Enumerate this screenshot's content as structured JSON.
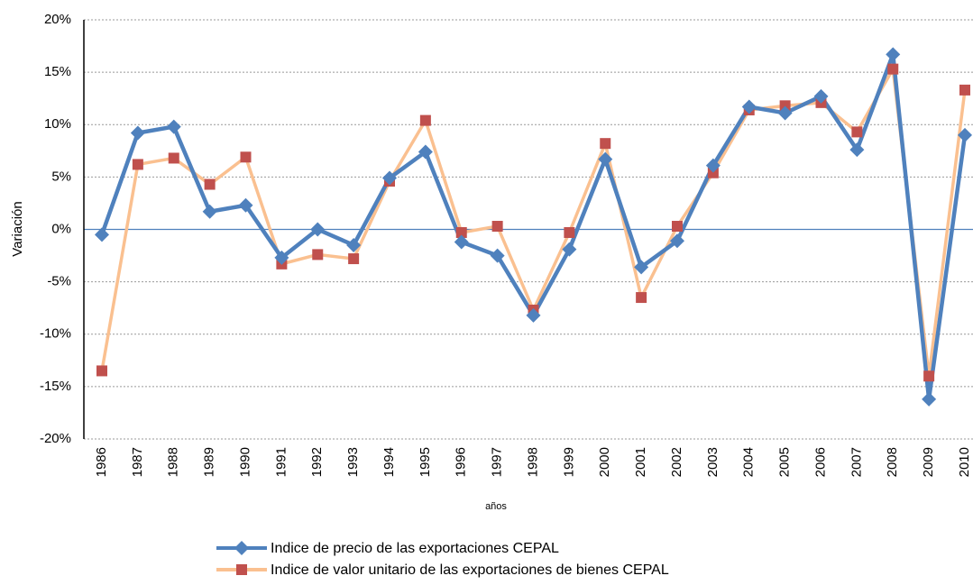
{
  "chart_data": {
    "type": "line",
    "ylabel": "Variación",
    "xlabel": "años",
    "categories": [
      "1986",
      "1987",
      "1988",
      "1989",
      "1990",
      "1991",
      "1992",
      "1993",
      "1994",
      "1995",
      "1996",
      "1997",
      "1998",
      "1999",
      "2000",
      "2001",
      "2002",
      "2003",
      "2004",
      "2005",
      "2006",
      "2007",
      "2008",
      "2009",
      "2010"
    ],
    "series": [
      {
        "name": "Indice de precio de las exportaciones CEPAL",
        "color": "#4f81bd",
        "marker": "diamond",
        "values": [
          -0.5,
          9.2,
          9.8,
          1.7,
          2.3,
          -2.7,
          0,
          -1.5,
          4.9,
          7.4,
          -1.2,
          -2.5,
          -8.2,
          -1.9,
          6.7,
          -3.6,
          -1.1,
          6.1,
          11.7,
          11.1,
          12.7,
          7.6,
          16.7,
          -16.2,
          9.0
        ]
      },
      {
        "name": "Indice de valor unitario de las exportaciones de bienes CEPAL",
        "color": "#fac090",
        "marker_color": "#c0504d",
        "marker": "square",
        "values": [
          -13.5,
          6.2,
          6.8,
          4.3,
          6.9,
          -3.3,
          -2.4,
          -2.8,
          4.6,
          10.4,
          -0.3,
          0.3,
          -7.7,
          -0.3,
          8.2,
          -6.5,
          0.3,
          5.4,
          11.4,
          11.8,
          12.1,
          9.3,
          15.3,
          -14.0,
          13.3
        ]
      }
    ],
    "ylim": [
      -20,
      20
    ],
    "yticks": [
      {
        "value": -20,
        "label": "-20%"
      },
      {
        "value": -15,
        "label": "-15%"
      },
      {
        "value": -10,
        "label": "-10%"
      },
      {
        "value": -5,
        "label": "-5%"
      },
      {
        "value": 0,
        "label": "0%"
      },
      {
        "value": 5,
        "label": "5%"
      },
      {
        "value": 10,
        "label": "10%"
      },
      {
        "value": 15,
        "label": "15%"
      },
      {
        "value": 20,
        "label": "20%"
      }
    ],
    "grid": true,
    "legend": "bottom"
  }
}
